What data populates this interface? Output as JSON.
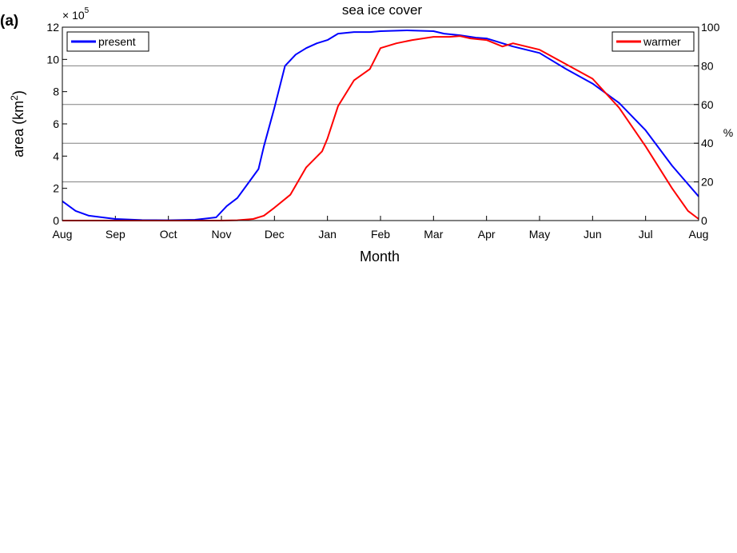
{
  "panel_label": "(a)",
  "chart_data": {
    "type": "line",
    "title": "sea ice cover",
    "xlabel": "Month",
    "ylabel_base": "area (km",
    "ylabel_sup": "2",
    "ylabel_close": ")",
    "y_multiplier_base": "× 10",
    "y_multiplier_exp": "5",
    "y2label": "%",
    "x_ticks": [
      "Aug",
      "Sep",
      "Oct",
      "Nov",
      "Dec",
      "Jan",
      "Feb",
      "Mar",
      "Apr",
      "May",
      "Jun",
      "Jul",
      "Aug"
    ],
    "x_range": [
      0,
      12
    ],
    "ylim": [
      0,
      12
    ],
    "y_ticks": [
      "0",
      "2",
      "4",
      "6",
      "8",
      "10",
      "12"
    ],
    "y2lim": [
      0,
      100
    ],
    "y2_ticks": [
      "0",
      "20",
      "40",
      "60",
      "80",
      "100"
    ],
    "grid": "horizontal at right-axis ticks",
    "series": [
      {
        "name": "present",
        "color": "#0000ff",
        "legend_position": "top-left",
        "x": [
          0,
          0.25,
          0.5,
          1,
          1.5,
          2,
          2.5,
          2.9,
          3.1,
          3.3,
          3.5,
          3.7,
          3.8,
          4,
          4.2,
          4.4,
          4.6,
          4.8,
          5,
          5.2,
          5.5,
          5.8,
          6,
          6.5,
          7,
          7.2,
          7.5,
          7.8,
          8,
          8.5,
          9,
          9.5,
          10,
          10.5,
          11,
          11.5,
          12
        ],
        "values": [
          1.2,
          0.6,
          0.3,
          0.1,
          0.03,
          0.02,
          0.05,
          0.2,
          0.9,
          1.4,
          2.3,
          3.2,
          4.6,
          7.0,
          9.6,
          10.3,
          10.7,
          11.0,
          11.2,
          11.6,
          11.7,
          11.7,
          11.75,
          11.8,
          11.75,
          11.6,
          11.5,
          11.35,
          11.3,
          10.8,
          10.4,
          9.4,
          8.5,
          7.3,
          5.6,
          3.4,
          1.5
        ]
      },
      {
        "name": "warmer",
        "color": "#ff0000",
        "legend_position": "top-right",
        "x": [
          0,
          0.5,
          1,
          2,
          3,
          3.3,
          3.6,
          3.8,
          4,
          4.3,
          4.6,
          4.9,
          5,
          5.2,
          5.5,
          5.8,
          6,
          6.3,
          6.6,
          7,
          7.3,
          7.5,
          7.7,
          8,
          8.3,
          8.5,
          9,
          9.5,
          10,
          10.5,
          11,
          11.5,
          11.8,
          12
        ],
        "values": [
          0,
          0,
          0,
          0,
          0,
          0.02,
          0.1,
          0.3,
          0.8,
          1.6,
          3.3,
          4.3,
          5.1,
          7.1,
          8.7,
          9.4,
          10.7,
          11.0,
          11.2,
          11.4,
          11.4,
          11.45,
          11.3,
          11.2,
          10.8,
          11.0,
          10.6,
          9.7,
          8.8,
          7.0,
          4.6,
          2.0,
          0.6,
          0.1
        ]
      }
    ]
  }
}
